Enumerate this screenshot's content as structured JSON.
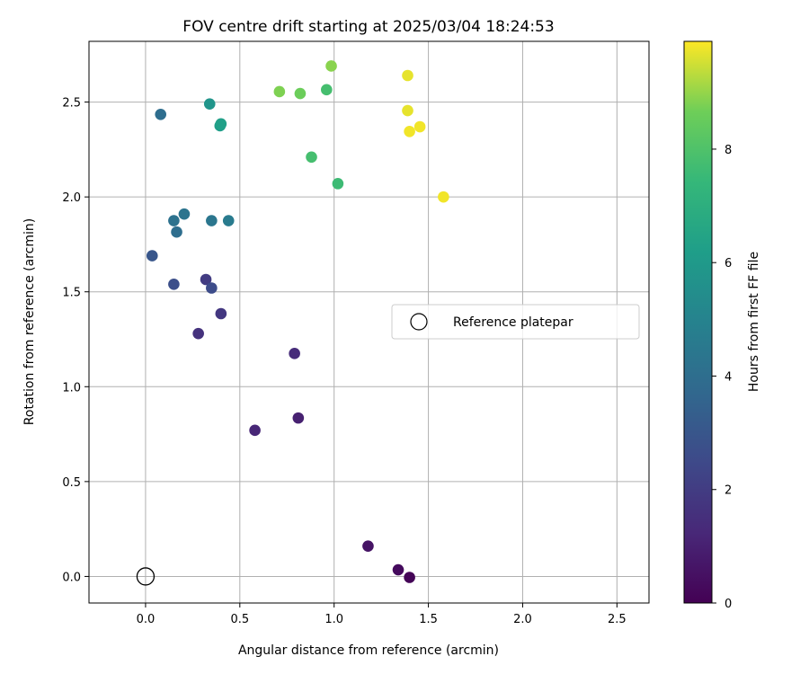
{
  "chart_data": {
    "type": "scatter",
    "title": "FOV centre drift starting at 2025/03/04 18:24:53",
    "xlabel": "Angular distance from reference (arcmin)",
    "ylabel": "Rotation from reference (arcmin)",
    "colorbar_label": "Hours from first FF file",
    "colormap": "viridis",
    "xlim": [
      -0.3,
      2.67
    ],
    "ylim": [
      -0.14,
      2.82
    ],
    "xticks": [
      0.0,
      0.5,
      1.0,
      1.5,
      2.0,
      2.5
    ],
    "xtick_labels": [
      "0.0",
      "0.5",
      "1.0",
      "1.5",
      "2.0",
      "2.5"
    ],
    "yticks": [
      0.0,
      0.5,
      1.0,
      1.5,
      2.0,
      2.5
    ],
    "ytick_labels": [
      "0.0",
      "0.5",
      "1.0",
      "1.5",
      "2.0",
      "2.5"
    ],
    "colorbar_range": [
      0,
      9.9
    ],
    "colorbar_ticks": [
      0,
      2,
      4,
      6,
      8
    ],
    "colorbar_tick_labels": [
      "0",
      "2",
      "4",
      "6",
      "8"
    ],
    "grid": true,
    "legend": {
      "placement": "center-right",
      "entries": [
        "Reference platepar"
      ]
    },
    "reference_point": {
      "x": 0.0,
      "y": 0.0,
      "marker": "open-circle",
      "label": "Reference platepar"
    },
    "points": [
      {
        "x": 1.4,
        "y": -0.005,
        "hours": 0.1
      },
      {
        "x": 1.34,
        "y": 0.035,
        "hours": 0.3
      },
      {
        "x": 1.18,
        "y": 0.16,
        "hours": 0.6
      },
      {
        "x": 0.81,
        "y": 0.835,
        "hours": 1.0
      },
      {
        "x": 0.58,
        "y": 0.77,
        "hours": 1.2
      },
      {
        "x": 0.79,
        "y": 1.175,
        "hours": 1.4
      },
      {
        "x": 0.28,
        "y": 1.28,
        "hours": 1.6
      },
      {
        "x": 0.4,
        "y": 1.385,
        "hours": 1.8
      },
      {
        "x": 0.32,
        "y": 1.565,
        "hours": 2.0
      },
      {
        "x": 0.35,
        "y": 1.52,
        "hours": 2.6
      },
      {
        "x": 0.15,
        "y": 1.54,
        "hours": 2.7
      },
      {
        "x": 0.035,
        "y": 1.69,
        "hours": 3.0
      },
      {
        "x": 0.165,
        "y": 1.815,
        "hours": 4.0
      },
      {
        "x": 0.15,
        "y": 1.875,
        "hours": 4.2
      },
      {
        "x": 0.205,
        "y": 1.91,
        "hours": 4.3
      },
      {
        "x": 0.35,
        "y": 1.875,
        "hours": 4.4
      },
      {
        "x": 0.44,
        "y": 1.875,
        "hours": 4.6
      },
      {
        "x": 0.08,
        "y": 2.435,
        "hours": 4.0
      },
      {
        "x": 0.34,
        "y": 2.49,
        "hours": 5.8
      },
      {
        "x": 0.395,
        "y": 2.375,
        "hours": 6.2
      },
      {
        "x": 0.4,
        "y": 2.385,
        "hours": 6.3
      },
      {
        "x": 1.02,
        "y": 2.07,
        "hours": 7.6
      },
      {
        "x": 0.88,
        "y": 2.21,
        "hours": 7.8
      },
      {
        "x": 0.96,
        "y": 2.565,
        "hours": 7.8
      },
      {
        "x": 0.82,
        "y": 2.545,
        "hours": 8.6
      },
      {
        "x": 0.71,
        "y": 2.555,
        "hours": 8.8
      },
      {
        "x": 0.985,
        "y": 2.69,
        "hours": 8.9
      },
      {
        "x": 1.39,
        "y": 2.64,
        "hours": 9.7
      },
      {
        "x": 1.39,
        "y": 2.455,
        "hours": 9.7
      },
      {
        "x": 1.4,
        "y": 2.345,
        "hours": 9.8
      },
      {
        "x": 1.455,
        "y": 2.37,
        "hours": 9.8
      },
      {
        "x": 1.58,
        "y": 2.0,
        "hours": 9.8
      }
    ]
  }
}
